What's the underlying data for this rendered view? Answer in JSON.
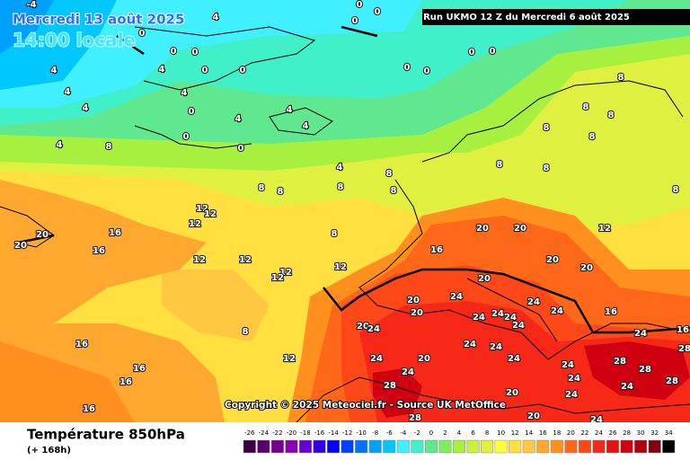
{
  "header": {
    "valid_date": "Mercredi 13 août 2025",
    "local_time": "14:00 locale",
    "run": "Run UKMO 12 Z du Mercredi 6 août 2025"
  },
  "copyright": "Copyright © 2025 Meteociel.fr - Source UK MetOffice",
  "footer": {
    "title": "Température 850hPa",
    "lead": "(+ 168h)"
  },
  "scale": {
    "ticks": [
      -26,
      -24,
      -22,
      -20,
      -18,
      -16,
      -14,
      -12,
      -10,
      -8,
      -6,
      -4,
      -2,
      0,
      2,
      4,
      6,
      8,
      10,
      12,
      14,
      16,
      18,
      20,
      22,
      24,
      26,
      28,
      30,
      32,
      34
    ],
    "colors": [
      "#3a0040",
      "#5a006a",
      "#760090",
      "#8a00b0",
      "#6a00d0",
      "#3000e8",
      "#0000ff",
      "#0040ff",
      "#0070ff",
      "#00a0ff",
      "#00c8ff",
      "#40f0ff",
      "#40f0c8",
      "#60e890",
      "#80ec60",
      "#a8f040",
      "#c8f040",
      "#e0f040",
      "#ffff40",
      "#ffe040",
      "#ffc840",
      "#ffa830",
      "#ff9020",
      "#ff6818",
      "#ff4818",
      "#f82818",
      "#e81010",
      "#d00010",
      "#b00010",
      "#800010",
      "#000000"
    ]
  },
  "map_labels": [
    -4,
    4,
    0,
    0,
    0,
    0,
    0,
    4,
    4,
    4,
    4,
    4,
    0,
    4,
    4,
    4,
    0,
    0,
    8,
    4,
    4,
    8,
    8,
    8,
    8,
    8,
    0,
    0,
    0,
    0,
    0,
    0,
    0,
    8,
    8,
    8,
    8,
    8,
    8,
    8,
    8,
    12,
    12,
    12,
    20,
    20,
    16,
    16,
    12,
    12,
    12,
    12,
    12,
    8,
    16,
    20,
    20,
    12,
    20,
    20,
    20,
    20,
    24,
    20,
    24,
    24,
    24,
    24,
    24,
    24,
    20,
    24,
    8,
    16,
    16,
    16,
    16,
    12,
    24,
    20,
    24,
    24,
    28,
    24,
    28,
    28,
    24,
    24,
    28,
    24,
    20,
    20,
    28,
    24,
    16,
    24,
    16,
    28,
    24,
    24
  ]
}
